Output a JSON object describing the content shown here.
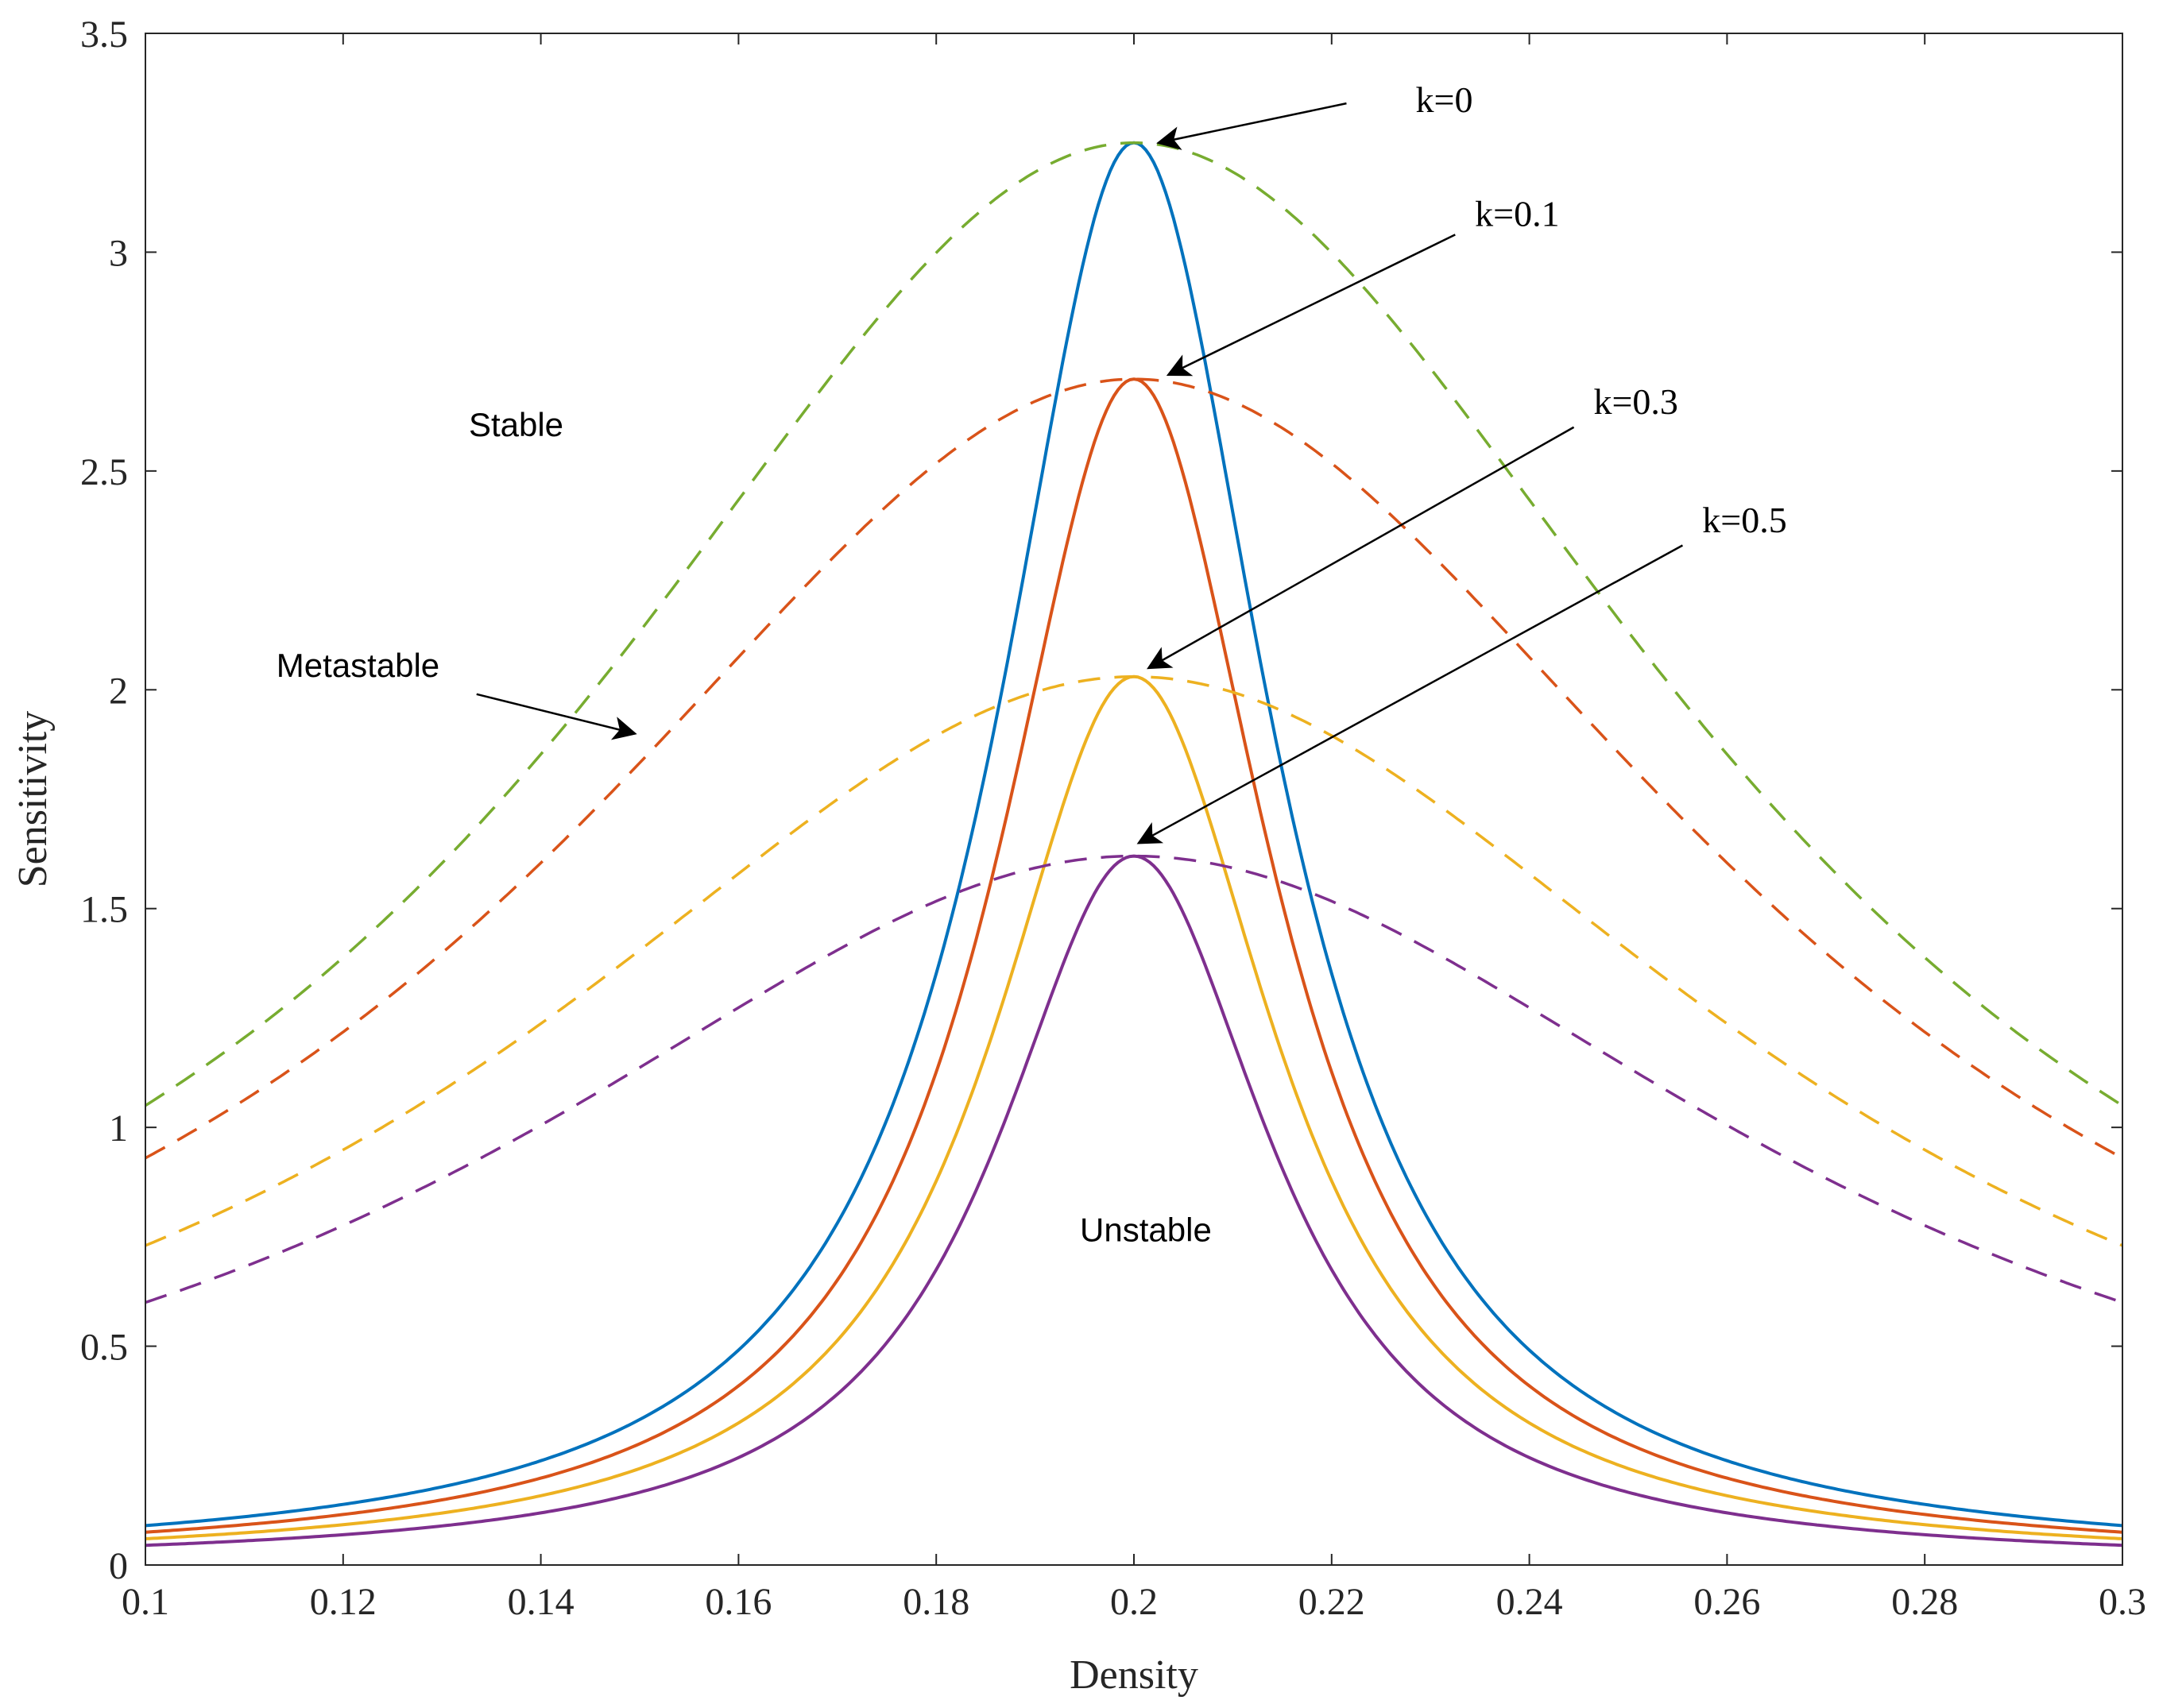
{
  "chart_data": {
    "type": "line",
    "title": "",
    "xlabel": "Density",
    "ylabel": "Sensitivity",
    "xlim": [
      0.1,
      0.3
    ],
    "ylim": [
      0,
      3.5
    ],
    "xticks": [
      0.1,
      0.12,
      0.14,
      0.16,
      0.18,
      0.2,
      0.22,
      0.24,
      0.26,
      0.28,
      0.3
    ],
    "xtick_labels": [
      "0.1",
      "0.12",
      "0.14",
      "0.16",
      "0.18",
      "0.2",
      "0.22",
      "0.24",
      "0.26",
      "0.28",
      "0.3"
    ],
    "yticks": [
      0,
      0.5,
      1,
      1.5,
      2,
      2.5,
      3,
      3.5
    ],
    "ytick_labels": [
      "0",
      "0.5",
      "1",
      "1.5",
      "2",
      "2.5",
      "3",
      "3.5"
    ],
    "grid": false,
    "series": [
      {
        "name": "k=0",
        "color": "#0072BD",
        "dash": "solid",
        "peak_x": 0.2,
        "peak": 3.25,
        "edge_value": 0.09
      },
      {
        "name": "k=0.1",
        "color": "#D95319",
        "dash": "solid",
        "peak_x": 0.2,
        "peak": 2.71,
        "edge_value": 0.075
      },
      {
        "name": "k=0.3",
        "color": "#EDB120",
        "dash": "solid",
        "peak_x": 0.2,
        "peak": 2.03,
        "edge_value": 0.06
      },
      {
        "name": "k=0.5",
        "color": "#7E2F8E",
        "dash": "solid",
        "peak_x": 0.2,
        "peak": 1.62,
        "edge_value": 0.045
      },
      {
        "name": "k=0",
        "color": "#77AC30",
        "dash": "dashed",
        "peak_x": 0.2,
        "peak": 3.25,
        "edge_value": 1.05
      },
      {
        "name": "k=0.1",
        "color": "#D95319",
        "dash": "dashed",
        "peak_x": 0.2,
        "peak": 2.71,
        "edge_value": 0.93
      },
      {
        "name": "k=0.3",
        "color": "#EDB120",
        "dash": "dashed",
        "peak_x": 0.2,
        "peak": 2.03,
        "edge_value": 0.73
      },
      {
        "name": "k=0.5",
        "color": "#7E2F8E",
        "dash": "dashed",
        "peak_x": 0.2,
        "peak": 1.62,
        "edge_value": 0.6
      }
    ],
    "annotations": [
      {
        "text": "k=0",
        "at": [
          0.2285,
          3.32
        ],
        "arrow_from": [
          0.2215,
          3.34
        ],
        "arrow_to": [
          0.2025,
          3.25
        ]
      },
      {
        "text": "k=0.1",
        "at": [
          0.2345,
          3.06
        ],
        "arrow_from": [
          0.2325,
          3.04
        ],
        "arrow_to": [
          0.2035,
          2.72
        ]
      },
      {
        "text": "k=0.3",
        "at": [
          0.2465,
          2.63
        ],
        "arrow_from": [
          0.2445,
          2.6
        ],
        "arrow_to": [
          0.2015,
          2.05
        ]
      },
      {
        "text": "k=0.5",
        "at": [
          0.2575,
          2.36
        ],
        "arrow_from": [
          0.2555,
          2.33
        ],
        "arrow_to": [
          0.2005,
          1.65
        ]
      },
      {
        "text": "Stable",
        "at": [
          0.1375,
          2.58
        ]
      },
      {
        "text": "Metastable",
        "at": [
          0.1215,
          2.03
        ],
        "arrow_from": [
          0.1335,
          1.99
        ],
        "arrow_to": [
          0.1495,
          1.9
        ]
      },
      {
        "text": "Unstable",
        "at": [
          0.2012,
          0.74
        ]
      }
    ]
  }
}
